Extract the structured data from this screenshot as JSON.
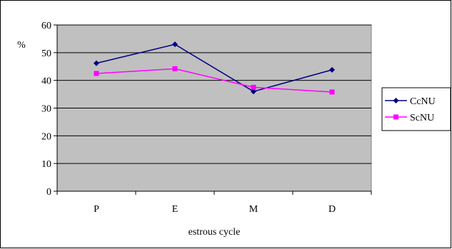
{
  "chart_data": {
    "type": "line",
    "categories": [
      "P",
      "E",
      "M",
      "D"
    ],
    "series": [
      {
        "name": "CcNU",
        "values": [
          46.2,
          53.0,
          36.0,
          43.8
        ],
        "color": "#000080",
        "marker": "diamond"
      },
      {
        "name": "ScNU",
        "values": [
          42.5,
          44.2,
          37.5,
          35.8
        ],
        "color": "#ff00ff",
        "marker": "square"
      }
    ],
    "yticks": [
      "0",
      "10",
      "20",
      "30",
      "40",
      "50",
      "60"
    ],
    "ylim": [
      0,
      60
    ],
    "ylabel": "%",
    "xlabel": "estrous cycle",
    "grid": true,
    "plot_background": "#c0c0c0",
    "legend_position": "right"
  }
}
